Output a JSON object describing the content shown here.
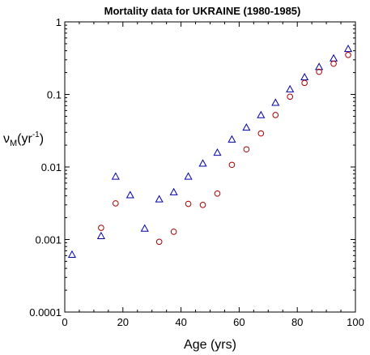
{
  "chart_data": {
    "type": "scatter",
    "title": "Mortality data for UKRAINE (1980-1985)",
    "xlabel": "Age (yrs)",
    "ylabel": {
      "symbol": "ν",
      "subscript": "M",
      "open": "(yr",
      "superscript": "-1",
      "close": ")"
    },
    "xlim": [
      0,
      100
    ],
    "ylim": [
      0.0001,
      1
    ],
    "yscale": "log",
    "x_ticks": [
      "0",
      "20",
      "40",
      "60",
      "80",
      "100"
    ],
    "y_ticks": [
      "0.0001",
      "0.001",
      "0.01",
      "0.1",
      "1"
    ],
    "grid": false,
    "series": [
      {
        "marker": "triangle",
        "color": "#0000aa",
        "points": [
          [
            2.5,
            0.00062
          ],
          [
            12.5,
            0.00112
          ],
          [
            17.5,
            0.0074
          ],
          [
            22.5,
            0.0041
          ],
          [
            27.5,
            0.00142
          ],
          [
            32.5,
            0.0036
          ],
          [
            37.5,
            0.0045
          ],
          [
            42.5,
            0.0074
          ],
          [
            47.5,
            0.0112
          ],
          [
            52.5,
            0.0158
          ],
          [
            57.5,
            0.024
          ],
          [
            62.5,
            0.035
          ],
          [
            67.5,
            0.052
          ],
          [
            72.5,
            0.077
          ],
          [
            77.5,
            0.118
          ],
          [
            82.5,
            0.173
          ],
          [
            87.5,
            0.24
          ],
          [
            92.5,
            0.315
          ],
          [
            97.5,
            0.425
          ]
        ]
      },
      {
        "marker": "circle",
        "color": "#aa0000",
        "points": [
          [
            12.5,
            0.00145
          ],
          [
            17.5,
            0.00315
          ],
          [
            32.5,
            0.00093
          ],
          [
            37.5,
            0.00128
          ],
          [
            42.5,
            0.0031
          ],
          [
            47.5,
            0.003
          ],
          [
            52.5,
            0.0043
          ],
          [
            57.5,
            0.0107
          ],
          [
            62.5,
            0.0175
          ],
          [
            67.5,
            0.029
          ],
          [
            72.5,
            0.052
          ],
          [
            77.5,
            0.093
          ],
          [
            82.5,
            0.144
          ],
          [
            87.5,
            0.205
          ],
          [
            92.5,
            0.265
          ],
          [
            97.5,
            0.35
          ]
        ]
      }
    ]
  }
}
